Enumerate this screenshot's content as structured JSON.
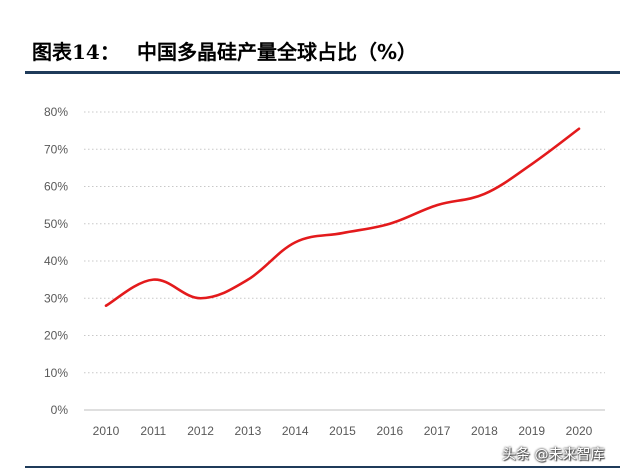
{
  "header": {
    "figure_label": "图表14：",
    "figure_title": "中国多晶硅产量全球占比（%）"
  },
  "watermark": "头条 @未来智库",
  "chart_data": {
    "type": "line",
    "title": "中国多晶硅产量全球占比（%）",
    "xlabel": "",
    "ylabel": "",
    "categories": [
      "2010",
      "2011",
      "2012",
      "2013",
      "2014",
      "2015",
      "2016",
      "2017",
      "2018",
      "2019",
      "2020"
    ],
    "series": [
      {
        "values": [
          28,
          35,
          30,
          35,
          45,
          47.5,
          50,
          55,
          58,
          66,
          75.5
        ]
      }
    ],
    "ylim": [
      0,
      80
    ],
    "yticks": [
      0,
      10,
      20,
      30,
      40,
      50,
      60,
      70,
      80
    ],
    "ytick_format": "%",
    "grid": "horizontal-dotted",
    "legend": "none",
    "line_color": "#e31a1c"
  }
}
